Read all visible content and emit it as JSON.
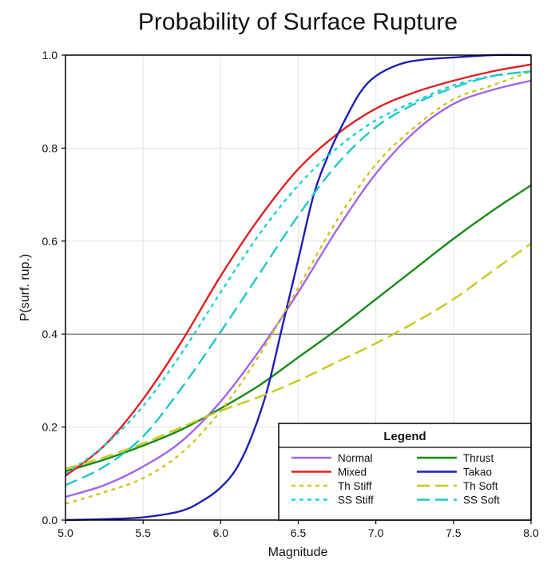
{
  "chart_data": {
    "type": "line",
    "title": "Probability of Surface Rupture",
    "xlabel": "Magnitude",
    "ylabel": "P(surf. rup.)",
    "xlim": [
      5.0,
      8.0
    ],
    "ylim": [
      0.0,
      1.0
    ],
    "x_ticks": [
      5.0,
      5.5,
      6.0,
      6.5,
      7.0,
      7.5,
      8.0
    ],
    "x_tick_labels": [
      "5.0",
      "5.5",
      "6.0",
      "6.5",
      "7.0",
      "7.5",
      "8.0"
    ],
    "y_ticks": [
      0.0,
      0.2,
      0.4,
      0.6,
      0.8,
      1.0
    ],
    "y_tick_labels": [
      "0.0",
      "0.2",
      "0.4",
      "0.6",
      "0.8",
      "1.0"
    ],
    "grid": true,
    "highlight_line_y": 0.4,
    "legend": {
      "title": "Legend",
      "placement": "bottom-right",
      "columns": 2
    },
    "series": [
      {
        "name": "Normal",
        "color": "#a563e8",
        "dash": "solid",
        "x": [
          5.0,
          5.25,
          5.5,
          5.75,
          6.0,
          6.25,
          6.5,
          6.75,
          7.0,
          7.25,
          7.5,
          7.75,
          8.0
        ],
        "y": [
          0.05,
          0.075,
          0.115,
          0.17,
          0.255,
          0.365,
          0.49,
          0.625,
          0.745,
          0.835,
          0.895,
          0.925,
          0.945
        ]
      },
      {
        "name": "Thrust",
        "color": "#1a8a1a",
        "dash": "solid",
        "x": [
          5.0,
          5.25,
          5.5,
          5.75,
          6.0,
          6.25,
          6.5,
          6.75,
          7.0,
          7.25,
          7.5,
          7.75,
          8.0
        ],
        "y": [
          0.105,
          0.13,
          0.16,
          0.195,
          0.24,
          0.29,
          0.35,
          0.41,
          0.475,
          0.54,
          0.605,
          0.665,
          0.72
        ]
      },
      {
        "name": "Mixed",
        "color": "#e02020",
        "dash": "solid",
        "x": [
          5.0,
          5.25,
          5.5,
          5.75,
          6.0,
          6.25,
          6.5,
          6.75,
          7.0,
          7.25,
          7.5,
          7.75,
          8.0
        ],
        "y": [
          0.095,
          0.16,
          0.26,
          0.385,
          0.525,
          0.65,
          0.755,
          0.83,
          0.885,
          0.92,
          0.945,
          0.965,
          0.98
        ]
      },
      {
        "name": "Takao",
        "color": "#1e1eb4",
        "dash": "solid",
        "x": [
          5.0,
          5.25,
          5.5,
          5.75,
          5.9,
          6.0,
          6.1,
          6.2,
          6.3,
          6.4,
          6.5,
          6.6,
          6.7,
          6.8,
          6.9,
          7.0,
          7.15,
          7.3,
          7.5,
          7.75,
          8.0
        ],
        "y": [
          0.0,
          0.002,
          0.006,
          0.02,
          0.045,
          0.07,
          0.11,
          0.18,
          0.28,
          0.42,
          0.56,
          0.7,
          0.79,
          0.86,
          0.92,
          0.955,
          0.98,
          0.99,
          0.995,
          1.0,
          1.0
        ]
      },
      {
        "name": "Th Stiff",
        "color": "#d2c41e",
        "dash": "short",
        "x": [
          5.0,
          5.25,
          5.5,
          5.75,
          6.0,
          6.25,
          6.5,
          6.75,
          7.0,
          7.25,
          7.5,
          7.75,
          8.0
        ],
        "y": [
          0.035,
          0.06,
          0.09,
          0.145,
          0.235,
          0.355,
          0.5,
          0.645,
          0.765,
          0.845,
          0.905,
          0.935,
          0.965
        ]
      },
      {
        "name": "Th Soft",
        "color": "#c8c81e",
        "dash": "long",
        "x": [
          5.0,
          5.25,
          5.5,
          5.75,
          6.0,
          6.25,
          6.5,
          6.75,
          7.0,
          7.25,
          7.5,
          7.75,
          8.0
        ],
        "y": [
          0.11,
          0.135,
          0.165,
          0.2,
          0.235,
          0.265,
          0.3,
          0.34,
          0.38,
          0.425,
          0.475,
          0.535,
          0.595
        ]
      },
      {
        "name": "SS Stiff",
        "color": "#1ed2d2",
        "dash": "short",
        "x": [
          5.0,
          5.25,
          5.5,
          5.75,
          6.0,
          6.25,
          6.5,
          6.75,
          7.0,
          7.25,
          7.5,
          7.75,
          8.0
        ],
        "y": [
          0.1,
          0.16,
          0.245,
          0.36,
          0.49,
          0.615,
          0.72,
          0.8,
          0.86,
          0.9,
          0.935,
          0.955,
          0.965
        ]
      },
      {
        "name": "SS Soft",
        "color": "#1ec8c8",
        "dash": "long",
        "x": [
          5.0,
          5.25,
          5.5,
          5.75,
          6.0,
          6.25,
          6.5,
          6.75,
          7.0,
          7.25,
          7.5,
          7.75,
          8.0
        ],
        "y": [
          0.075,
          0.115,
          0.18,
          0.285,
          0.405,
          0.53,
          0.655,
          0.765,
          0.845,
          0.895,
          0.93,
          0.955,
          0.965
        ]
      }
    ]
  }
}
